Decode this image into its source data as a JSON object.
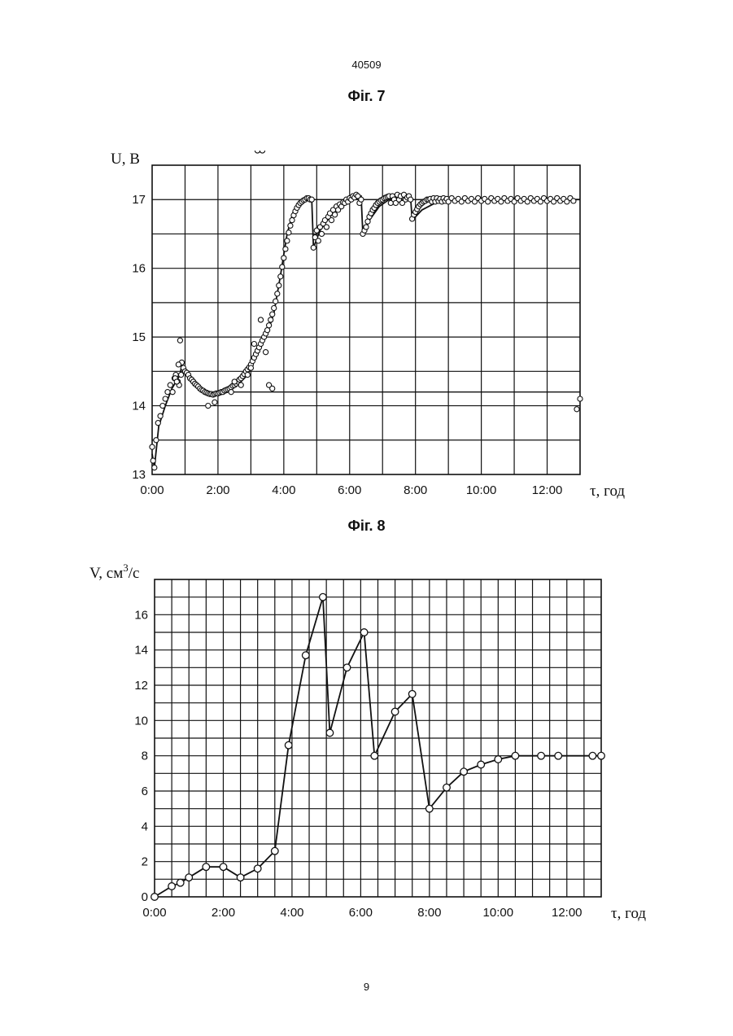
{
  "page": {
    "top_number": "40509",
    "bottom_number": "9"
  },
  "chart_data": [
    {
      "id": "fig7",
      "caption": "Фіг. 7",
      "type": "scatter",
      "ylabel": "U, B",
      "xlabel": "τ, год",
      "xlim": [
        0,
        13.0
      ],
      "ylim": [
        13,
        17.5
      ],
      "grid": true,
      "x_ticks": [
        {
          "v": 0,
          "label": "0:00"
        },
        {
          "v": 2,
          "label": "2:00"
        },
        {
          "v": 4,
          "label": "4:00"
        },
        {
          "v": 6,
          "label": "6:00"
        },
        {
          "v": 8,
          "label": "8:00"
        },
        {
          "v": 10,
          "label": "10:00"
        },
        {
          "v": 12,
          "label": "12:00"
        }
      ],
      "y_ticks": [
        {
          "v": 13,
          "label": "13"
        },
        {
          "v": 14,
          "label": "14"
        },
        {
          "v": 15,
          "label": "15"
        },
        {
          "v": 16,
          "label": "16"
        },
        {
          "v": 17,
          "label": "17"
        }
      ],
      "reference_lines": [
        {
          "x_from": 1.5,
          "x_to": 13.0,
          "y": 14.2
        },
        {
          "x_from": 4.8,
          "x_to": 13.0,
          "y": 17.0
        }
      ],
      "trend_x": [
        0.0,
        0.07,
        0.2,
        0.4,
        0.6,
        0.85,
        0.9,
        1.1,
        1.4,
        1.7,
        2.0,
        2.3,
        2.6,
        2.9,
        3.1,
        3.3,
        3.5,
        3.7,
        3.9,
        4.1,
        4.3,
        4.5,
        4.75,
        4.85,
        4.9,
        5.1,
        5.4,
        5.7,
        6.0,
        6.35,
        6.4,
        6.6,
        6.9,
        7.2,
        7.5,
        7.85,
        7.9,
        8.2,
        8.6,
        9.0,
        13.0
      ],
      "trend_y": [
        13.3,
        13.1,
        13.7,
        14.0,
        14.25,
        14.45,
        14.6,
        14.45,
        14.3,
        14.2,
        14.15,
        14.2,
        14.3,
        14.45,
        14.65,
        14.85,
        15.05,
        15.35,
        15.9,
        16.5,
        16.85,
        16.95,
        17.0,
        17.0,
        16.3,
        16.55,
        16.75,
        16.9,
        17.0,
        17.05,
        16.5,
        16.7,
        16.9,
        17.0,
        17.03,
        17.05,
        16.7,
        16.85,
        16.95,
        17.0,
        17.0
      ],
      "scatter_x": [
        0.0,
        0.03,
        0.07,
        0.12,
        0.18,
        0.25,
        0.32,
        0.4,
        0.47,
        0.55,
        0.62,
        0.68,
        0.72,
        0.78,
        0.82,
        0.88,
        0.9,
        0.95,
        1.0,
        1.05,
        1.1,
        1.15,
        1.2,
        1.25,
        1.3,
        1.35,
        1.4,
        1.45,
        1.5,
        1.55,
        1.6,
        1.65,
        1.7,
        1.75,
        1.8,
        1.85,
        1.9,
        1.95,
        2.0,
        2.05,
        2.1,
        2.15,
        2.2,
        2.25,
        2.3,
        2.35,
        2.4,
        2.45,
        2.5,
        2.55,
        2.6,
        2.65,
        2.7,
        2.75,
        2.8,
        2.85,
        2.9,
        2.95,
        3.0,
        3.05,
        3.1,
        3.15,
        3.2,
        3.25,
        3.3,
        3.35,
        3.4,
        3.45,
        3.5,
        3.55,
        3.6,
        3.65,
        3.7,
        3.75,
        3.8,
        3.85,
        3.9,
        3.95,
        4.0,
        4.05,
        4.1,
        4.15,
        4.2,
        4.25,
        4.3,
        4.35,
        4.4,
        4.45,
        4.5,
        4.55,
        4.6,
        4.65,
        4.7,
        4.75,
        4.8,
        4.85,
        4.9,
        4.95,
        5.0,
        5.05,
        5.1,
        5.15,
        5.2,
        5.25,
        5.3,
        5.35,
        5.4,
        5.45,
        5.5,
        5.55,
        5.6,
        5.65,
        5.7,
        5.75,
        5.8,
        5.85,
        5.9,
        5.95,
        6.0,
        6.05,
        6.1,
        6.15,
        6.2,
        6.25,
        6.3,
        6.35,
        6.4,
        6.45,
        6.5,
        6.55,
        6.6,
        6.65,
        6.7,
        6.75,
        6.8,
        6.85,
        6.9,
        6.95,
        7.0,
        7.05,
        7.1,
        7.15,
        7.2,
        7.25,
        7.3,
        7.35,
        7.4,
        7.45,
        7.5,
        7.55,
        7.6,
        7.65,
        7.7,
        7.75,
        7.8,
        7.85,
        7.9,
        7.95,
        8.0,
        8.05,
        8.1,
        8.15,
        8.2,
        8.25,
        8.3,
        8.35,
        8.4,
        8.45,
        8.5,
        8.55,
        8.6,
        8.65,
        8.7,
        8.75,
        8.8,
        8.85,
        8.9,
        8.95,
        9.0,
        9.1,
        9.2,
        9.3,
        9.4,
        9.5,
        9.6,
        9.7,
        9.8,
        9.9,
        10.0,
        10.1,
        10.2,
        10.3,
        10.4,
        10.5,
        10.6,
        10.7,
        10.8,
        10.9,
        11.0,
        11.1,
        11.2,
        11.3,
        11.4,
        11.5,
        11.6,
        11.7,
        11.8,
        11.9,
        12.0,
        12.1,
        12.2,
        12.3,
        12.4,
        12.5,
        12.6,
        12.7,
        12.8,
        12.9,
        13.0,
        1.7,
        1.9,
        2.4,
        2.5,
        2.7,
        2.9,
        3.0,
        3.1,
        3.3,
        3.45,
        3.55,
        3.65,
        0.7,
        0.75,
        0.8,
        0.85,
        3.2,
        3.35
      ],
      "scatter_y": [
        13.4,
        13.2,
        13.1,
        13.5,
        13.75,
        13.85,
        14.0,
        14.1,
        14.2,
        14.3,
        14.2,
        14.4,
        14.45,
        14.35,
        14.3,
        14.45,
        14.63,
        14.55,
        14.5,
        14.48,
        14.45,
        14.4,
        14.38,
        14.35,
        14.32,
        14.3,
        14.28,
        14.25,
        14.23,
        14.22,
        14.2,
        14.19,
        14.18,
        14.17,
        14.17,
        14.16,
        14.17,
        14.18,
        14.18,
        14.19,
        14.2,
        14.2,
        14.22,
        14.23,
        14.24,
        14.25,
        14.27,
        14.29,
        14.3,
        14.32,
        14.35,
        14.38,
        14.4,
        14.43,
        14.46,
        14.5,
        14.53,
        14.56,
        14.6,
        14.65,
        14.7,
        14.75,
        14.8,
        14.85,
        14.9,
        14.95,
        15.0,
        15.05,
        15.1,
        15.17,
        15.25,
        15.33,
        15.42,
        15.52,
        15.63,
        15.75,
        15.88,
        16.02,
        16.15,
        16.28,
        16.4,
        16.52,
        16.62,
        16.7,
        16.77,
        16.83,
        16.88,
        16.92,
        16.95,
        16.97,
        16.99,
        17.0,
        17.02,
        17.02,
        17.0,
        17.0,
        16.3,
        16.45,
        16.55,
        16.4,
        16.6,
        16.5,
        16.65,
        16.7,
        16.6,
        16.75,
        16.8,
        16.7,
        16.85,
        16.78,
        16.9,
        16.85,
        16.93,
        16.9,
        16.96,
        16.95,
        17.0,
        16.97,
        17.02,
        17.0,
        17.05,
        17.03,
        17.07,
        17.05,
        16.95,
        17.0,
        16.5,
        16.55,
        16.6,
        16.68,
        16.75,
        16.8,
        16.85,
        16.88,
        16.92,
        16.95,
        16.97,
        16.99,
        17.0,
        17.02,
        17.03,
        17.04,
        17.05,
        16.95,
        17.05,
        17.0,
        16.95,
        17.07,
        17.0,
        17.05,
        16.95,
        17.07,
        17.0,
        17.03,
        17.05,
        17.0,
        16.72,
        16.78,
        16.82,
        16.86,
        16.9,
        16.93,
        16.95,
        16.97,
        16.98,
        17.0,
        17.0,
        17.01,
        16.97,
        17.02,
        16.97,
        17.02,
        16.98,
        17.01,
        16.97,
        17.02,
        16.98,
        17.01,
        16.97,
        17.02,
        16.98,
        17.01,
        16.97,
        17.02,
        16.98,
        17.01,
        16.97,
        17.02,
        16.98,
        17.01,
        16.97,
        17.02,
        16.98,
        17.01,
        16.97,
        17.02,
        16.98,
        17.01,
        16.97,
        17.02,
        16.98,
        17.01,
        16.97,
        17.02,
        16.98,
        17.01,
        16.97,
        17.02,
        16.98,
        17.01,
        16.97,
        17.02,
        16.98,
        17.01,
        16.97,
        17.02,
        16.98,
        13.95,
        14.1,
        14.0,
        14.05,
        14.2,
        14.35,
        14.3,
        14.45,
        14.55,
        14.9,
        15.25,
        14.78,
        14.3,
        14.25,
        14.4,
        14.35,
        14.6,
        14.95
      ]
    },
    {
      "id": "fig8",
      "caption": "Фіг. 8",
      "type": "line",
      "ylabel": "V, см",
      "ylabel_sup": "3",
      "ylabel_tail": "/с",
      "xlabel": "τ, год",
      "xlim": [
        0,
        13.0
      ],
      "ylim": [
        0,
        18
      ],
      "grid": true,
      "x_ticks": [
        {
          "v": 0,
          "label": "0:00"
        },
        {
          "v": 2,
          "label": "2:00"
        },
        {
          "v": 4,
          "label": "4:00"
        },
        {
          "v": 6,
          "label": "6:00"
        },
        {
          "v": 8,
          "label": "8:00"
        },
        {
          "v": 10,
          "label": "10:00"
        },
        {
          "v": 12,
          "label": "12:00"
        }
      ],
      "y_ticks": [
        {
          "v": 0,
          "label": "0"
        },
        {
          "v": 2,
          "label": "2"
        },
        {
          "v": 4,
          "label": "4"
        },
        {
          "v": 6,
          "label": "6"
        },
        {
          "v": 8,
          "label": "8"
        },
        {
          "v": 10,
          "label": "10"
        },
        {
          "v": 12,
          "label": "12"
        },
        {
          "v": 14,
          "label": "14"
        },
        {
          "v": 16,
          "label": "16"
        }
      ],
      "x": [
        0.0,
        0.5,
        0.75,
        1.0,
        1.5,
        2.0,
        2.5,
        3.0,
        3.5,
        3.9,
        4.4,
        4.9,
        5.1,
        5.6,
        6.1,
        6.4,
        7.0,
        7.5,
        8.0,
        8.5,
        9.0,
        9.5,
        10.0,
        10.5,
        11.25,
        11.75,
        12.75,
        13.0
      ],
      "y": [
        0.0,
        0.6,
        0.8,
        1.1,
        1.7,
        1.7,
        1.1,
        1.6,
        2.6,
        8.6,
        13.7,
        17.0,
        9.3,
        13.0,
        15.0,
        8.0,
        10.5,
        11.5,
        5.0,
        6.2,
        7.1,
        7.5,
        7.8,
        8.0,
        8.0,
        8.0,
        8.0,
        8.0
      ]
    }
  ]
}
